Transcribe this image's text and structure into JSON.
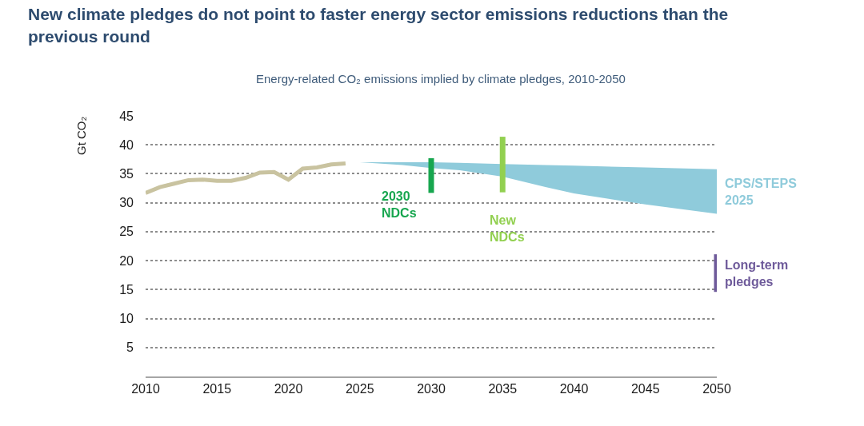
{
  "chart_data": {
    "type": "line",
    "title": "New climate pledges do not point to faster energy sector emissions reductions than the previous round",
    "subtitle": "Energy-related CO₂ emissions implied by climate pledges, 2010-2050",
    "ylabel": "Gt CO₂",
    "xlim": [
      2010,
      2050
    ],
    "xticks": [
      2010,
      2015,
      2020,
      2025,
      2030,
      2035,
      2040,
      2045,
      2050
    ],
    "ylim": [
      0,
      45
    ],
    "yticks": [
      5,
      10,
      15,
      20,
      25,
      30,
      35,
      40,
      45
    ],
    "grid": "y",
    "legend": false,
    "line_style": "solid",
    "series": [
      {
        "color": "#c9c3a0",
        "x": [
          2010,
          2011,
          2012,
          2013,
          2014,
          2015,
          2016,
          2017,
          2018,
          2019,
          2020,
          2021,
          2022,
          2023,
          2024
        ],
        "values": [
          31.7,
          32.7,
          33.3,
          33.9,
          34.0,
          33.8,
          33.8,
          34.3,
          35.2,
          35.3,
          34.0,
          35.9,
          36.1,
          36.6,
          36.8
        ]
      },
      {
        "name": "CPS/STEPS 2025",
        "type": "area",
        "color": "#8fcbdb",
        "x": [
          2025,
          2028,
          2030,
          2032,
          2035,
          2038,
          2040,
          2045,
          2050
        ],
        "values": [
          null,
          null,
          null,
          null,
          null,
          null,
          null,
          null,
          null
        ],
        "upper": [
          37.0,
          37.0,
          37.0,
          36.9,
          36.7,
          36.5,
          36.4,
          36.1,
          35.8
        ],
        "lower": [
          37.0,
          36.5,
          36.0,
          35.6,
          34.5,
          32.7,
          31.6,
          29.7,
          28.1
        ]
      },
      {
        "name": "2030 NDCs",
        "color": "#17a64f",
        "x": [
          2030,
          2030
        ],
        "values": [
          31.7,
          37.7
        ]
      },
      {
        "name": "New NDCs",
        "color": "#92d050",
        "x": [
          2035,
          2035
        ],
        "values": [
          31.8,
          41.4
        ]
      },
      {
        "name": "Long-term pledges",
        "color": "#6e5a9a",
        "x": [
          2050,
          2050
        ],
        "values": [
          14.6,
          21.1
        ]
      }
    ]
  }
}
